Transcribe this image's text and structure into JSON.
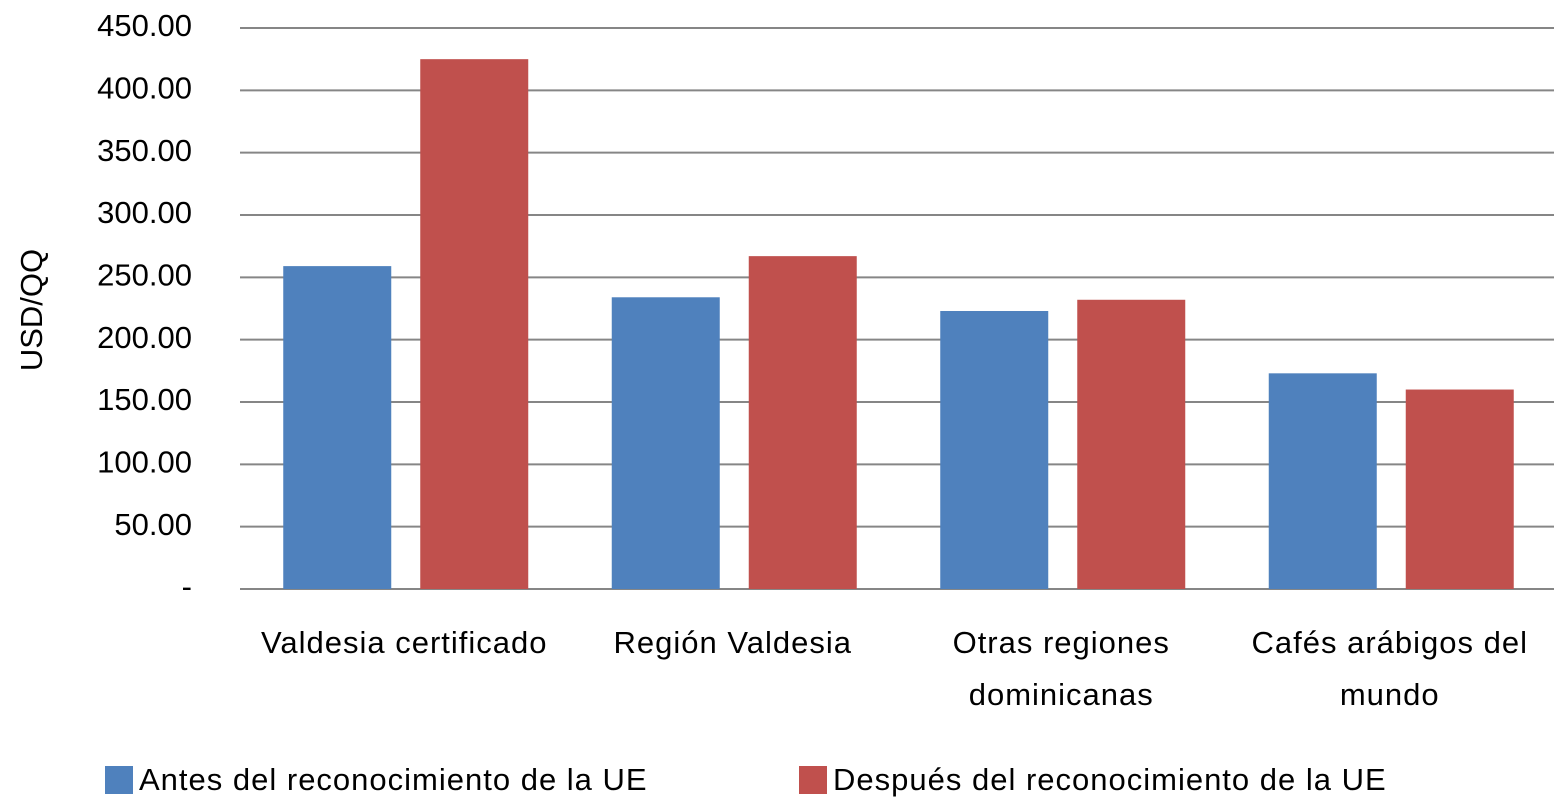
{
  "chart_data": {
    "type": "bar",
    "y_label": "USD/QQ",
    "categories": [
      "Valdesia certificado",
      "Región Valdesia",
      "Otras regiones dominicanas",
      "Cafés arábigos del mundo"
    ],
    "series": [
      {
        "name": "Antes del reconocimiento de la UE",
        "color": "#4f81bd",
        "values": [
          259,
          234,
          223,
          173
        ]
      },
      {
        "name": "Después del reconocimiento de la UE",
        "color": "#c0504d",
        "values": [
          425,
          267,
          232,
          160
        ]
      }
    ],
    "ylim": [
      0,
      450
    ],
    "yticks": [
      {
        "value": 0,
        "label": "-"
      },
      {
        "value": 50,
        "label": "50.00"
      },
      {
        "value": 100,
        "label": "100.00"
      },
      {
        "value": 150,
        "label": "150.00"
      },
      {
        "value": 200,
        "label": "200.00"
      },
      {
        "value": 250,
        "label": "250.00"
      },
      {
        "value": 300,
        "label": "300.00"
      },
      {
        "value": 350,
        "label": "350.00"
      },
      {
        "value": 400,
        "label": "400.00"
      },
      {
        "value": 450,
        "label": "450.00"
      }
    ],
    "grid": true
  }
}
